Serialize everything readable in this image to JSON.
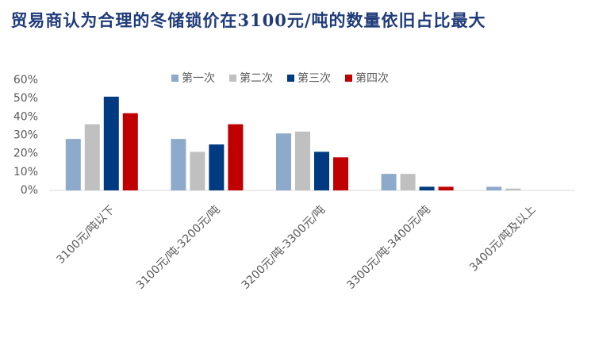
{
  "chart_data": {
    "type": "bar",
    "title": "贸易商认为合理的冬储锁价在3100元/吨的数量依旧占比最大",
    "categories": [
      "3100元/吨以下",
      "3100元/吨-3200元/吨",
      "3200元/吨-3300元/吨",
      "3300元/吨-3400元/吨",
      "3400元/吨及以上"
    ],
    "series": [
      {
        "name": "第一次",
        "color": "#8eaacb",
        "values": [
          28,
          28,
          31,
          9,
          2
        ]
      },
      {
        "name": "第二次",
        "color": "#c0c0c0",
        "values": [
          36,
          21,
          32,
          9,
          1
        ]
      },
      {
        "name": "第三次",
        "color": "#003a80",
        "values": [
          51,
          25,
          21,
          2,
          0
        ]
      },
      {
        "name": "第四次",
        "color": "#c00000",
        "values": [
          42,
          36,
          18,
          2,
          0
        ]
      }
    ],
    "ylim": [
      0,
      60
    ],
    "yticks": [
      {
        "value": 0,
        "label": "0%"
      },
      {
        "value": 10,
        "label": "10%"
      },
      {
        "value": 20,
        "label": "20%"
      },
      {
        "value": 30,
        "label": "30%"
      },
      {
        "value": 40,
        "label": "40%"
      },
      {
        "value": 50,
        "label": "50%"
      },
      {
        "value": 60,
        "label": "60%"
      }
    ],
    "legend": "top"
  }
}
